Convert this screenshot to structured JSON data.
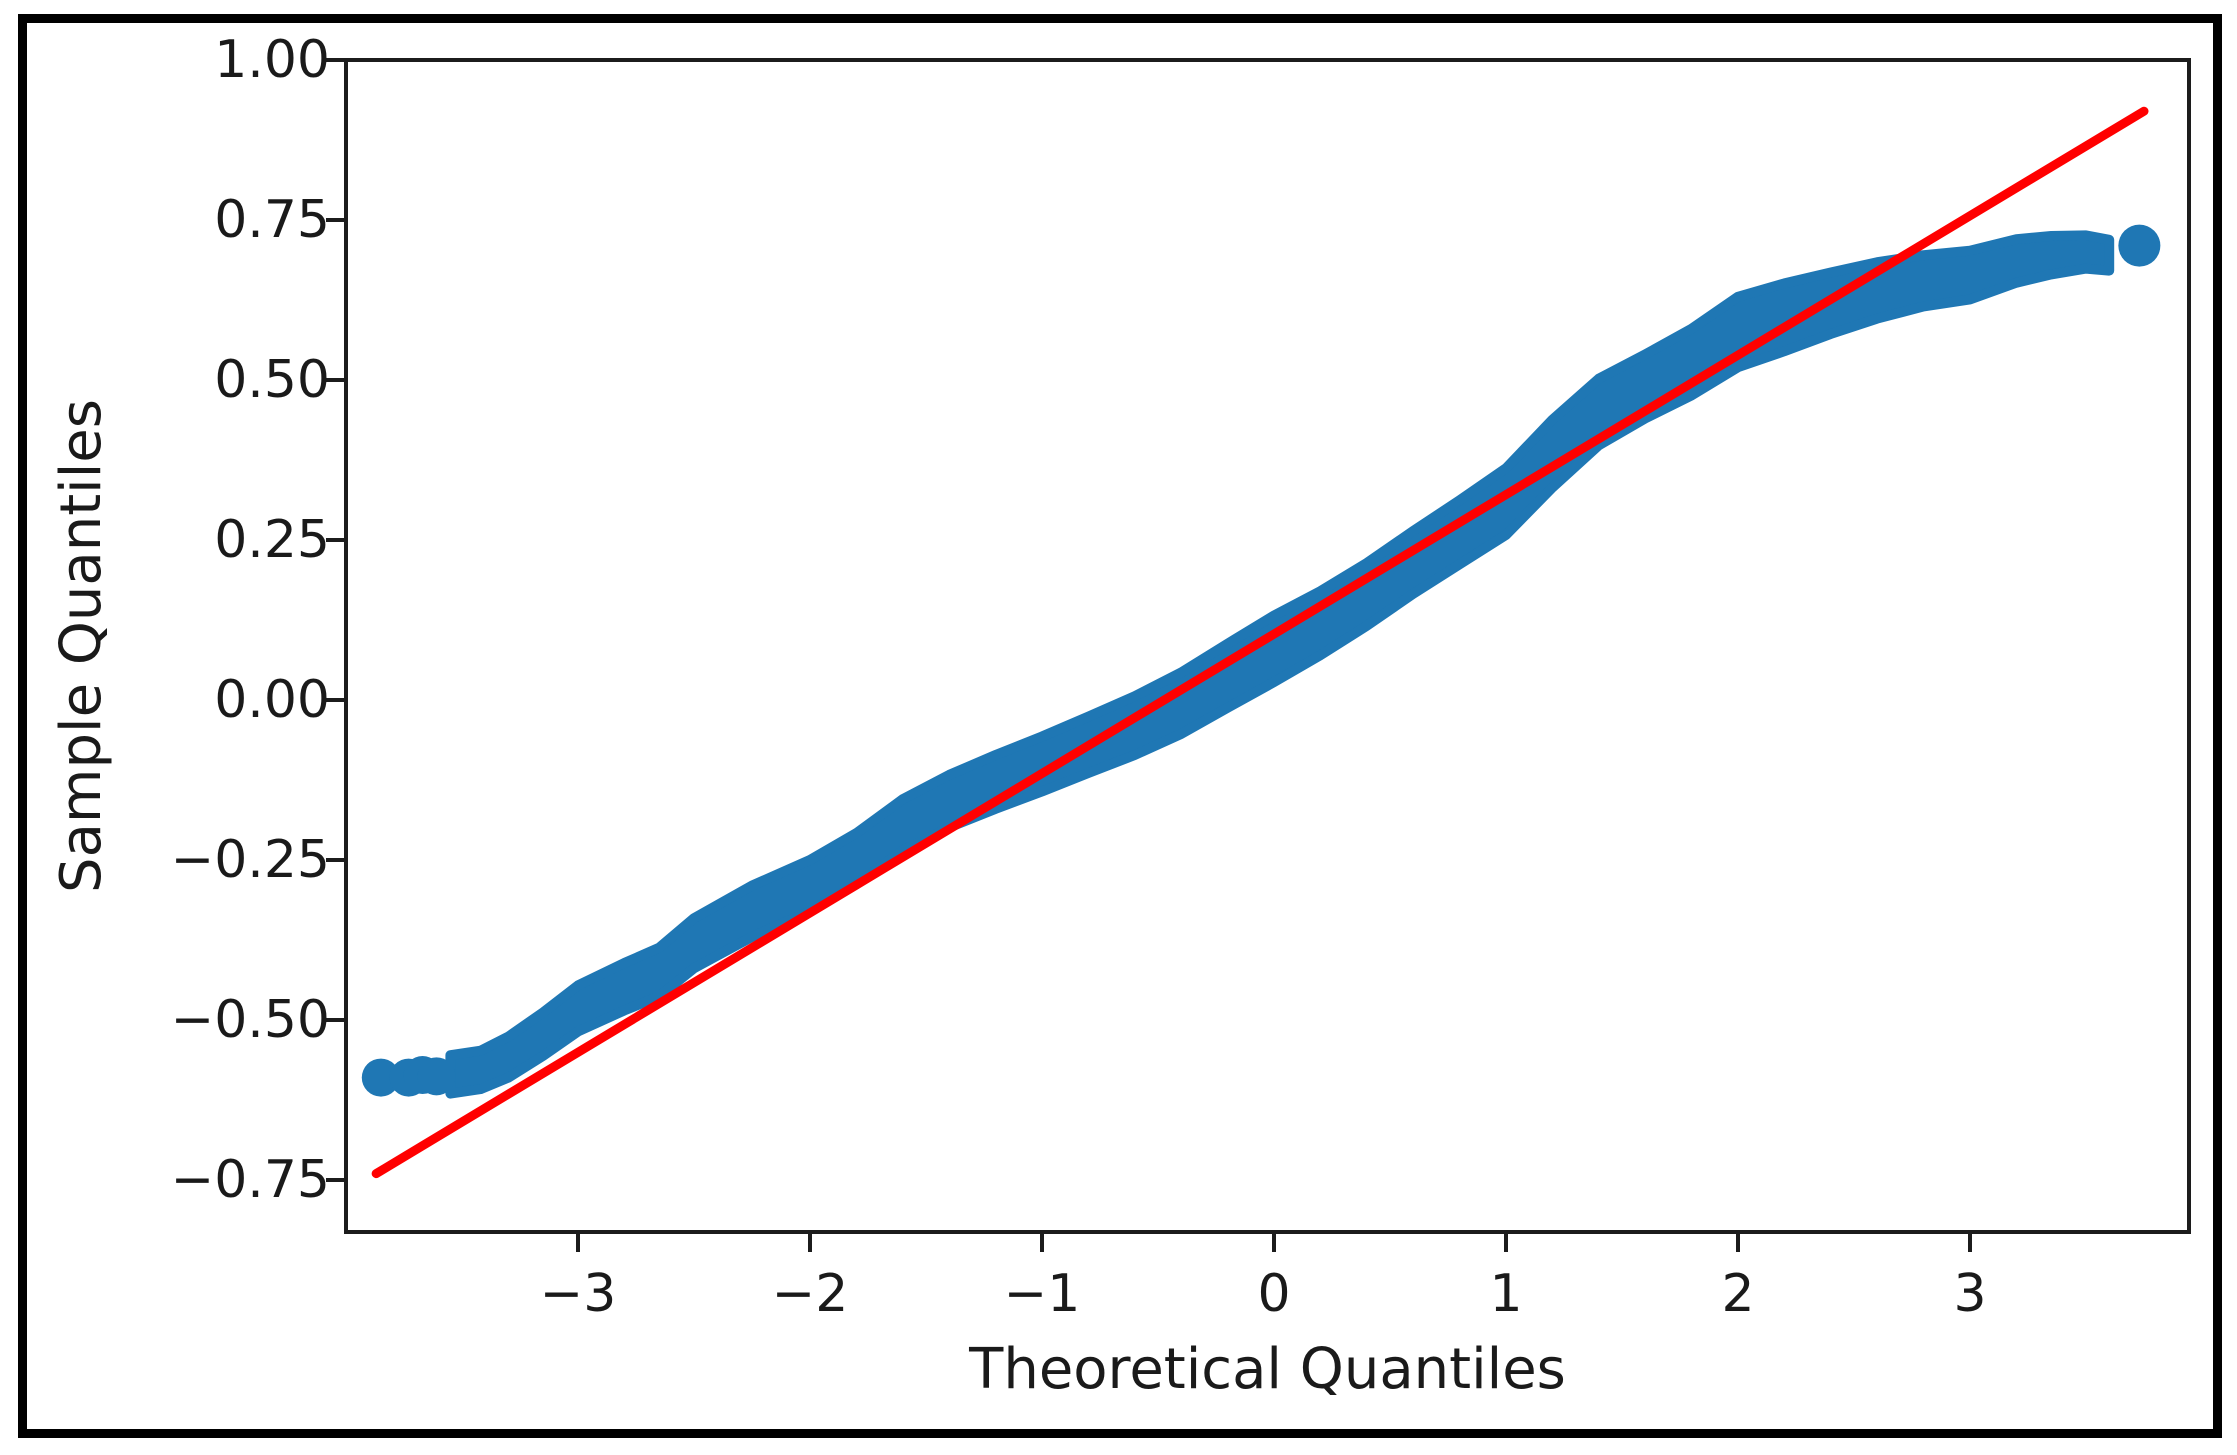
{
  "figure": {
    "background": "#ffffff",
    "border_color": "#000000",
    "axis_color": "#1c1c1c",
    "text_color": "#1a1a1a"
  },
  "chart_data": {
    "type": "scatter",
    "title": "",
    "xlabel": "Theoretical Quantiles",
    "ylabel": "Sample Quantiles",
    "xlim": [
      -4.0,
      3.95
    ],
    "ylim": [
      -0.83,
      1.0
    ],
    "grid": false,
    "legend": "none",
    "x_ticks": [
      -3,
      -2,
      -1,
      0,
      1,
      2,
      3
    ],
    "x_tick_labels": [
      "−3",
      "−2",
      "−1",
      "0",
      "1",
      "2",
      "3"
    ],
    "y_ticks": [
      1.0,
      0.75,
      0.5,
      0.25,
      0.0,
      -0.25,
      -0.5,
      -0.75
    ],
    "y_tick_labels": [
      "1.00",
      "0.75",
      "0.50",
      "0.25",
      "0.00",
      "−0.25",
      "−0.50",
      "−0.75"
    ],
    "marker_color": "#1f77b4",
    "line_color": "#ff0000",
    "series": [
      {
        "name": "sample_quantile_band",
        "type": "scatter-band",
        "description": "Dense overlapping scatter points forming a thick S-shaped band; points are the band centerline (theoretical quantile, sample quantile), halfwidth is the vertical half-thickness of the band in y-units",
        "color": "#1f77b4",
        "points": [
          [
            -3.55,
            -0.585
          ],
          [
            -3.42,
            -0.578
          ],
          [
            -3.3,
            -0.558
          ],
          [
            -3.15,
            -0.522
          ],
          [
            -3.0,
            -0.482
          ],
          [
            -2.8,
            -0.448
          ],
          [
            -2.65,
            -0.425
          ],
          [
            -2.5,
            -0.38
          ],
          [
            -2.25,
            -0.33
          ],
          [
            -2.0,
            -0.29
          ],
          [
            -1.8,
            -0.248
          ],
          [
            -1.6,
            -0.195
          ],
          [
            -1.4,
            -0.158
          ],
          [
            -1.2,
            -0.128
          ],
          [
            -1.0,
            -0.1
          ],
          [
            -0.8,
            -0.07
          ],
          [
            -0.6,
            -0.04
          ],
          [
            -0.4,
            -0.005
          ],
          [
            -0.2,
            0.038
          ],
          [
            0.0,
            0.08
          ],
          [
            0.2,
            0.12
          ],
          [
            0.4,
            0.165
          ],
          [
            0.6,
            0.215
          ],
          [
            0.8,
            0.262
          ],
          [
            1.0,
            0.31
          ],
          [
            1.2,
            0.385
          ],
          [
            1.4,
            0.45
          ],
          [
            1.6,
            0.49
          ],
          [
            1.8,
            0.528
          ],
          [
            2.0,
            0.575
          ],
          [
            2.2,
            0.598
          ],
          [
            2.4,
            0.62
          ],
          [
            2.6,
            0.64
          ],
          [
            2.8,
            0.655
          ],
          [
            3.0,
            0.664
          ],
          [
            3.2,
            0.686
          ],
          [
            3.35,
            0.695
          ],
          [
            3.5,
            0.7
          ],
          [
            3.6,
            0.695
          ]
        ],
        "halfwidth": [
          0.03,
          0.03,
          0.032,
          0.034,
          0.036,
          0.037,
          0.038,
          0.039,
          0.04,
          0.04,
          0.04,
          0.04,
          0.041,
          0.042,
          0.043,
          0.044,
          0.046,
          0.048,
          0.05,
          0.052,
          0.05,
          0.049,
          0.049,
          0.05,
          0.052,
          0.053,
          0.052,
          0.05,
          0.052,
          0.055,
          0.053,
          0.048,
          0.044,
          0.04,
          0.038,
          0.034,
          0.03,
          0.026,
          0.024
        ]
      },
      {
        "name": "left_tail_points",
        "type": "scatter",
        "color": "#1f77b4",
        "points": [
          [
            -3.85,
            -0.59
          ],
          [
            -3.73,
            -0.59
          ],
          [
            -3.67,
            -0.586
          ],
          [
            -3.61,
            -0.588
          ]
        ]
      },
      {
        "name": "right_tail_point",
        "type": "scatter",
        "color": "#1f77b4",
        "points": [
          [
            3.73,
            0.71
          ]
        ]
      },
      {
        "name": "reference_line",
        "type": "line",
        "color": "#ff0000",
        "endpoints": [
          [
            -3.87,
            -0.74
          ],
          [
            3.75,
            0.92
          ]
        ]
      }
    ]
  }
}
